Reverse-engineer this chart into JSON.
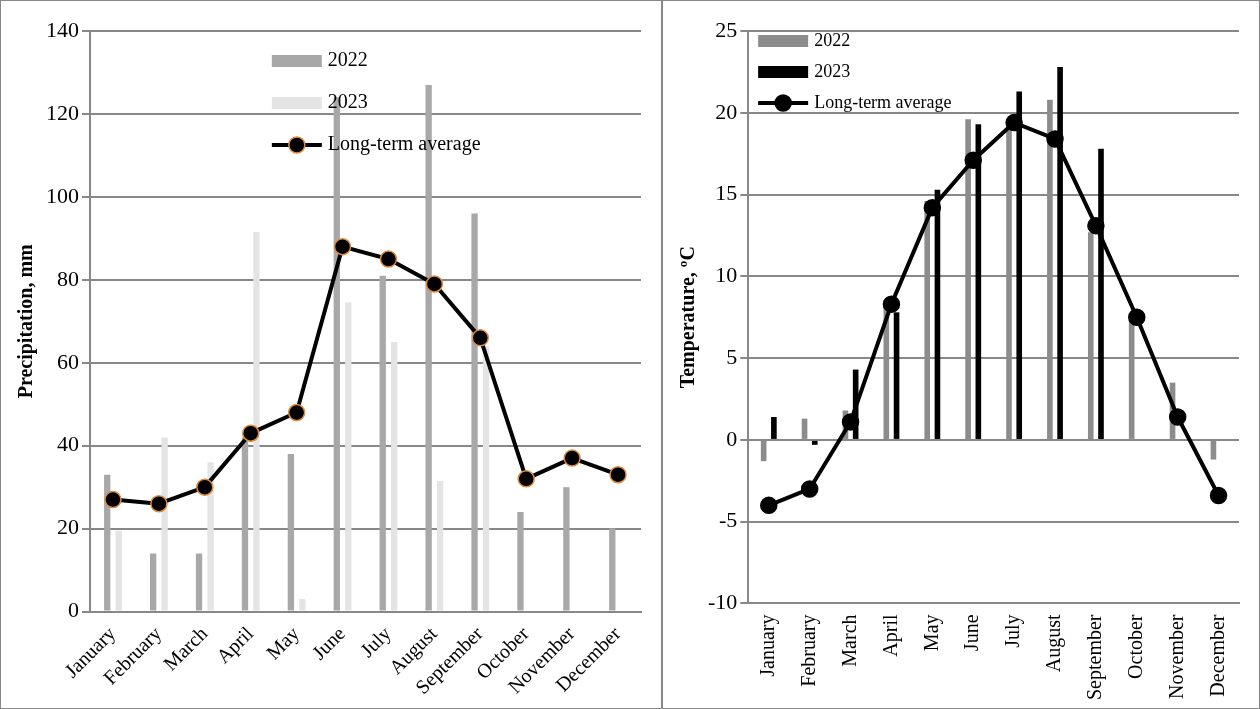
{
  "chart_data": [
    {
      "type": "bar",
      "ylabel": "Precipitation, mm",
      "categories": [
        "January",
        "February",
        "March",
        "April",
        "May",
        "June",
        "July",
        "August",
        "September",
        "October",
        "November",
        "December"
      ],
      "series": [
        {
          "name": "2022",
          "color": "#a8a8a8",
          "values": [
            33,
            14,
            14,
            42,
            38,
            124,
            81,
            127,
            96,
            24,
            30,
            20
          ]
        },
        {
          "name": "2023",
          "color": "#e4e4e4",
          "values": [
            19.5,
            42,
            36,
            91.5,
            3,
            74.5,
            65,
            31.5,
            64,
            null,
            null,
            null
          ]
        },
        {
          "name": "Long-term average",
          "type": "line",
          "color": "#000000",
          "values": [
            27,
            26,
            30,
            43,
            48,
            88,
            85,
            79,
            66,
            32,
            37,
            33
          ]
        }
      ],
      "ylim": [
        0,
        140
      ],
      "yticks": [
        0,
        20,
        40,
        60,
        80,
        100,
        120,
        140
      ],
      "grid": "y",
      "legend": "top",
      "marker": "circle"
    },
    {
      "type": "bar",
      "ylabel": "Temperature, ºC",
      "categories": [
        "January",
        "February",
        "March",
        "April",
        "May",
        "June",
        "July",
        "August",
        "September",
        "October",
        "November",
        "December"
      ],
      "series": [
        {
          "name": "2022",
          "color": "#8c8c8c",
          "values": [
            -1.3,
            1.3,
            1.8,
            8.2,
            14.6,
            19.6,
            19,
            20.8,
            12.7,
            7.4,
            3.5,
            -1.2
          ]
        },
        {
          "name": "2023",
          "color": "#000000",
          "values": [
            1.4,
            -0.3,
            4.3,
            7.8,
            15.3,
            19.3,
            21.3,
            22.8,
            17.8,
            null,
            null,
            null
          ]
        },
        {
          "name": "Long-term average",
          "type": "line",
          "color": "#000000",
          "values": [
            -4,
            -3,
            1.1,
            8.3,
            14.2,
            17.1,
            19.4,
            18.4,
            13.1,
            7.5,
            1.4,
            -3.4
          ]
        }
      ],
      "ylim": [
        -10,
        25
      ],
      "yticks": [
        -10,
        -5,
        0,
        5,
        10,
        15,
        20,
        25
      ],
      "grid": "y",
      "legend": "top",
      "marker": "circle"
    }
  ]
}
